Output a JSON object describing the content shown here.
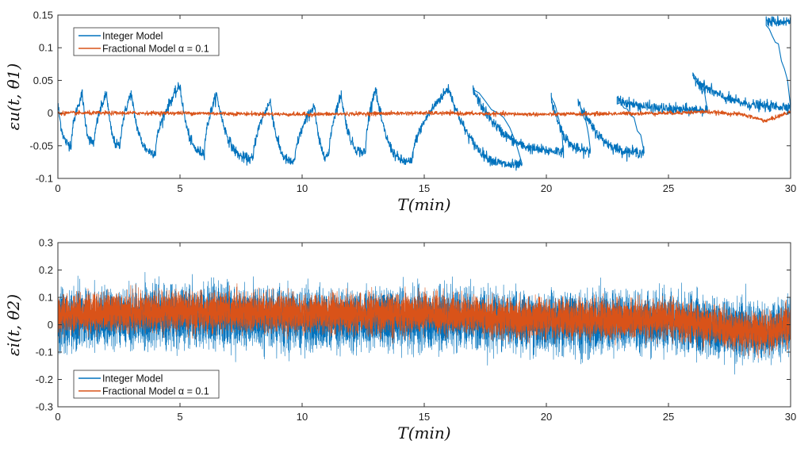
{
  "colors": {
    "integer": "#0072BD",
    "fractional": "#D95319",
    "axis": "#333333",
    "background": "#ffffff"
  },
  "chart_data": [
    {
      "type": "line",
      "xlabel": "T(min)",
      "ylabel": "εu(t, θ1)",
      "xlim": [
        0,
        30
      ],
      "ylim": [
        -0.1,
        0.15
      ],
      "x_ticks": [
        "0",
        "5",
        "10",
        "15",
        "20",
        "25",
        "30"
      ],
      "y_ticks": [
        "-0.1",
        "-0.05",
        "0",
        "0.05",
        "0.1",
        "0.15"
      ],
      "grid": false,
      "legend_position": "top-left",
      "series": [
        {
          "name": "Integer Model",
          "color": "#0072BD",
          "peaks": [
            [
              0,
              0.015
            ],
            [
              1.0,
              0.03
            ],
            [
              2.0,
              0.03
            ],
            [
              3.0,
              0.03
            ],
            [
              5.0,
              0.042
            ],
            [
              6.5,
              0.028
            ],
            [
              8.7,
              0.018
            ],
            [
              10.5,
              0.012
            ],
            [
              11.6,
              0.028
            ],
            [
              13.0,
              0.038
            ],
            [
              16.0,
              0.038
            ],
            [
              17.0,
              0.035
            ],
            [
              20.2,
              0.022
            ],
            [
              21.3,
              0.02
            ],
            [
              22.9,
              0.02
            ],
            [
              26.0,
              0.055
            ],
            [
              29.0,
              0.14
            ]
          ],
          "troughs": [
            [
              0.55,
              -0.048
            ],
            [
              1.5,
              -0.045
            ],
            [
              2.55,
              -0.05
            ],
            [
              4.0,
              -0.06
            ],
            [
              6.0,
              -0.06
            ],
            [
              8.0,
              -0.07
            ],
            [
              9.7,
              -0.075
            ],
            [
              11.1,
              -0.065
            ],
            [
              12.6,
              -0.06
            ],
            [
              14.5,
              -0.075
            ],
            [
              19.0,
              -0.08
            ],
            [
              20.7,
              -0.058
            ],
            [
              21.8,
              -0.058
            ],
            [
              24.0,
              -0.06
            ],
            [
              26.6,
              0.005
            ],
            [
              30.0,
              0.01
            ]
          ],
          "noise": 0.004
        },
        {
          "name": "Fractional Model α = 0.1",
          "color": "#D95319",
          "points": [
            [
              0,
              0.0
            ],
            [
              5,
              0.0
            ],
            [
              10,
              -0.002
            ],
            [
              15,
              0.0
            ],
            [
              20,
              -0.002
            ],
            [
              25,
              0.0
            ],
            [
              26.5,
              0.002
            ],
            [
              28.0,
              -0.002
            ],
            [
              29.0,
              -0.012
            ],
            [
              30.0,
              0.002
            ]
          ],
          "noise": 0.0015
        }
      ]
    },
    {
      "type": "line",
      "xlabel": "T(min)",
      "ylabel": "εi(t, θ2)",
      "xlim": [
        0,
        30
      ],
      "ylim": [
        -0.3,
        0.3
      ],
      "x_ticks": [
        "0",
        "5",
        "10",
        "15",
        "20",
        "25",
        "30"
      ],
      "y_ticks": [
        "-0.3",
        "-0.2",
        "-0.1",
        "0",
        "0.1",
        "0.2",
        "0.3"
      ],
      "grid": false,
      "legend_position": "bottom-left",
      "series": [
        {
          "name": "Integer Model",
          "color": "#0072BD",
          "center": [
            [
              0,
              0.02
            ],
            [
              5,
              0.03
            ],
            [
              10,
              0.02
            ],
            [
              15,
              0.02
            ],
            [
              20,
              0.01
            ],
            [
              25,
              0.01
            ],
            [
              28,
              -0.02
            ],
            [
              29,
              -0.03
            ],
            [
              30,
              0.0
            ]
          ],
          "amplitude": 0.1
        },
        {
          "name": "Fractional Model α = 0.1",
          "color": "#D95319",
          "center": [
            [
              0,
              0.04
            ],
            [
              5,
              0.05
            ],
            [
              10,
              0.04
            ],
            [
              15,
              0.04
            ],
            [
              20,
              0.02
            ],
            [
              25,
              0.02
            ],
            [
              28,
              -0.02
            ],
            [
              29,
              -0.03
            ],
            [
              30,
              0.0
            ]
          ],
          "amplitude": 0.065
        }
      ]
    }
  ]
}
